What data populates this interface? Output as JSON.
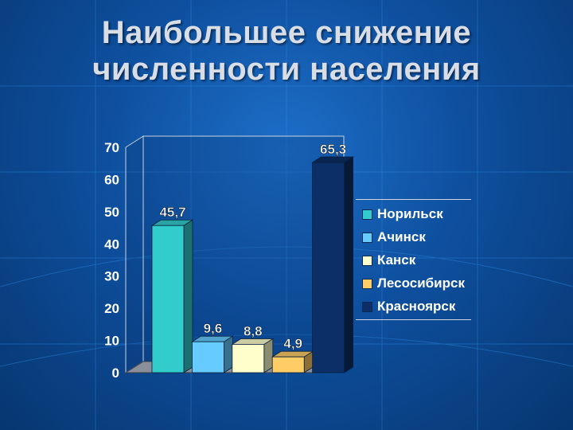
{
  "title": {
    "line1": "Наибольшее снижение",
    "line2": "численности населения"
  },
  "chart_data": {
    "type": "bar",
    "title": "Наибольшее снижение численности населения",
    "categories": [
      "Норильск",
      "Ачинск",
      "Канск",
      "Лесосибирск",
      "Красноярск"
    ],
    "values": [
      45.7,
      9.6,
      8.8,
      4.9,
      65.3
    ],
    "value_labels": [
      "45,7",
      "9,6",
      "8,8",
      "4,9",
      "65,3"
    ],
    "colors": [
      "#33cccc",
      "#66ccff",
      "#ffffcc",
      "#ffcc66",
      "#0b2f66"
    ],
    "ylim": [
      0,
      70
    ],
    "yticks": [
      "0",
      "10",
      "20",
      "30",
      "40",
      "50",
      "60",
      "70"
    ],
    "grid": false,
    "legend_position": "right",
    "style": "3d"
  }
}
